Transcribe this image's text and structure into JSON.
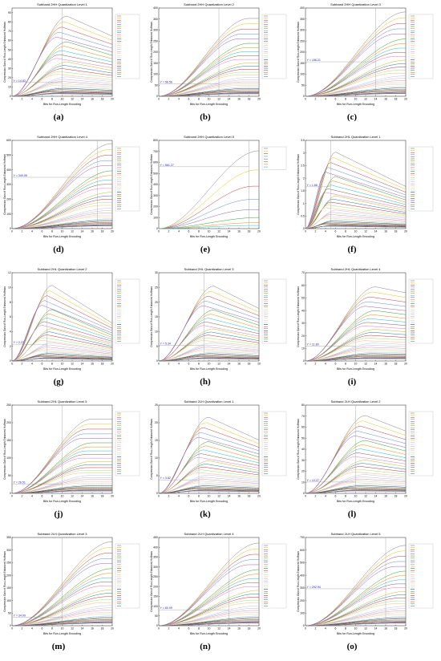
{
  "shared": {
    "xlabel": "Bits for Run-Length Encoding",
    "ylabel": "Compression Gain of Run-Length Enhanced Huffman",
    "x_ticks": [
      "0",
      "2",
      "4",
      "6",
      "8",
      "10",
      "12",
      "14",
      "16",
      "18",
      "20"
    ]
  },
  "chart_data": [
    {
      "label": "(a)",
      "title": "Subband 2HH Quantization Level 1",
      "type": "line",
      "xlim": [
        0,
        20
      ],
      "ylim": [
        0,
        95
      ],
      "y_ticks": [
        "0",
        "10",
        "20",
        "30",
        "40",
        "50",
        "60",
        "70",
        "80",
        "90"
      ],
      "marker_x": 10,
      "threshold_label": "Y = 14.83",
      "threshold": 14.83,
      "peak": 88,
      "peak_x": 11,
      "decay": 0.25,
      "series_count": 30
    },
    {
      "label": "(b)",
      "title": "Subband 2HH Quantization Level 2",
      "type": "line",
      "xlim": [
        0,
        20
      ],
      "ylim": [
        0,
        400
      ],
      "y_ticks": [
        "0",
        "50",
        "100",
        "150",
        "200",
        "250",
        "300",
        "350",
        "400"
      ],
      "marker_x": 12,
      "threshold_label": "Y = 56.56",
      "threshold": 56.56,
      "peak": 360,
      "peak_x": 18,
      "decay": 0.0,
      "series_count": 30
    },
    {
      "label": "(c)",
      "title": "Subband 2HH Quantization Level 3",
      "type": "line",
      "xlim": [
        0,
        20
      ],
      "ylim": [
        0,
        400
      ],
      "y_ticks": [
        "0",
        "50",
        "100",
        "150",
        "200",
        "250",
        "300",
        "350",
        "400"
      ],
      "marker_x": 14,
      "threshold_label": "Y = 156.21",
      "threshold": 156.21,
      "peak": 390,
      "peak_x": 20,
      "decay": 0.0,
      "series_count": 30
    },
    {
      "label": "(d)",
      "title": "Subband 2HH Quantization Level 4",
      "type": "line",
      "xlim": [
        0,
        20
      ],
      "ylim": [
        0,
        600
      ],
      "y_ticks": [
        "0",
        "100",
        "200",
        "300",
        "400",
        "500",
        "600"
      ],
      "marker_x": 17,
      "threshold_label": "Y = 349.06",
      "threshold": 349.06,
      "peak": 590,
      "peak_x": 20,
      "decay": 0.0,
      "series_count": 30
    },
    {
      "label": "(e)",
      "title": "Subband 2HH Quantization Level 5",
      "type": "line",
      "xlim": [
        0,
        20
      ],
      "ylim": [
        0,
        800
      ],
      "y_ticks": [
        "0",
        "100",
        "200",
        "300",
        "400",
        "500",
        "600",
        "700",
        "800"
      ],
      "marker_x": 18,
      "threshold_label": "Y = 561.27",
      "threshold": 561.27,
      "peak": 720,
      "peak_x": 20,
      "decay": 0.0,
      "series_count": 8
    },
    {
      "label": "(f)",
      "title": "Subband 2HL Quantization Level 1",
      "type": "line",
      "xlim": [
        0,
        20
      ],
      "ylim": [
        0,
        3.5
      ],
      "y_ticks": [
        "0",
        "0.5",
        "1",
        "1.5",
        "2",
        "2.5",
        "3",
        "3.5"
      ],
      "marker_x": 5,
      "threshold_label": "Y = 1.66",
      "threshold": 1.66,
      "peak": 3.1,
      "peak_x": 6,
      "decay": 0.45,
      "series_count": 30
    },
    {
      "label": "(g)",
      "title": "Subband 2HL Quantization Level 2",
      "type": "line",
      "xlim": [
        0,
        20
      ],
      "ylim": [
        0,
        12
      ],
      "y_ticks": [
        "0",
        "2",
        "4",
        "6",
        "8",
        "10",
        "12"
      ],
      "marker_x": 7,
      "threshold_label": "Y = 2.27",
      "threshold": 2.27,
      "peak": 10.5,
      "peak_x": 8,
      "decay": 0.5,
      "series_count": 30
    },
    {
      "label": "(h)",
      "title": "Subband 2HL Quantization Level 3",
      "type": "line",
      "xlim": [
        0,
        20
      ],
      "ylim": [
        0,
        30
      ],
      "y_ticks": [
        "0",
        "5",
        "10",
        "15",
        "20",
        "25",
        "30"
      ],
      "marker_x": 9,
      "threshold_label": "Y = 5.34",
      "threshold": 5.34,
      "peak": 26,
      "peak_x": 11,
      "decay": 0.3,
      "series_count": 30
    },
    {
      "label": "(i)",
      "title": "Subband 2HL Quantization Level 4",
      "type": "line",
      "xlim": [
        0,
        20
      ],
      "ylim": [
        0,
        70
      ],
      "y_ticks": [
        "0",
        "10",
        "20",
        "30",
        "40",
        "50",
        "60",
        "70"
      ],
      "marker_x": 10,
      "threshold_label": "Y = 11.89",
      "threshold": 11.89,
      "peak": 60,
      "peak_x": 14,
      "decay": 0.08,
      "series_count": 30
    },
    {
      "label": "(j)",
      "title": "Subband 2HL Quantization Level 5",
      "type": "line",
      "xlim": [
        0,
        20
      ],
      "ylim": [
        0,
        250
      ],
      "y_ticks": [
        "0",
        "50",
        "100",
        "150",
        "200",
        "250"
      ],
      "marker_x": 10,
      "threshold_label": "Y = 26.51",
      "threshold": 26.51,
      "peak": 215,
      "peak_x": 16,
      "decay": 0.0,
      "series_count": 30
    },
    {
      "label": "(k)",
      "title": "Subband 2LH Quantization Level 1",
      "type": "line",
      "xlim": [
        0,
        20
      ],
      "ylim": [
        0,
        25
      ],
      "y_ticks": [
        "0",
        "5",
        "10",
        "15",
        "20",
        "25"
      ],
      "marker_x": 8,
      "threshold_label": "Y = 3.82",
      "threshold": 3.82,
      "peak": 22,
      "peak_x": 10,
      "decay": 0.3,
      "series_count": 30
    },
    {
      "label": "(l)",
      "title": "Subband 2LH Quantization Level 2",
      "type": "line",
      "xlim": [
        0,
        20
      ],
      "ylim": [
        0,
        80
      ],
      "y_ticks": [
        "0",
        "10",
        "20",
        "30",
        "40",
        "50",
        "60",
        "70",
        "80"
      ],
      "marker_x": 10,
      "threshold_label": "Y = 10.27",
      "threshold": 10.27,
      "peak": 72,
      "peak_x": 12,
      "decay": 0.2,
      "series_count": 30
    },
    {
      "label": "(m)",
      "title": "Subband 2LH Quantization Level 3",
      "type": "line",
      "xlim": [
        0,
        20
      ],
      "ylim": [
        0,
        350
      ],
      "y_ticks": [
        "0",
        "50",
        "100",
        "150",
        "200",
        "250",
        "300",
        "350"
      ],
      "marker_x": 10,
      "threshold_label": "Y = 34.09",
      "threshold": 34.09,
      "peak": 340,
      "peak_x": 20,
      "decay": 0.0,
      "series_count": 30
    },
    {
      "label": "(n)",
      "title": "Subband 2LH Quantization Level 4",
      "type": "line",
      "xlim": [
        0,
        20
      ],
      "ylim": [
        0,
        450
      ],
      "y_ticks": [
        "0",
        "50",
        "100",
        "150",
        "200",
        "250",
        "300",
        "350",
        "400",
        "450"
      ],
      "marker_x": 14,
      "threshold_label": "Y = 80.99",
      "threshold": 80.99,
      "peak": 430,
      "peak_x": 20,
      "decay": 0.0,
      "series_count": 30
    },
    {
      "label": "(o)",
      "title": "Subband 2LH Quantization Level 5",
      "type": "line",
      "xlim": [
        0,
        20
      ],
      "ylim": [
        0,
        700
      ],
      "y_ticks": [
        "0",
        "100",
        "200",
        "300",
        "400",
        "500",
        "600",
        "700"
      ],
      "marker_x": 16,
      "threshold_label": "Y = 292.94",
      "threshold": 292.94,
      "peak": 650,
      "peak_x": 20,
      "decay": 0.0,
      "series_count": 30
    }
  ]
}
